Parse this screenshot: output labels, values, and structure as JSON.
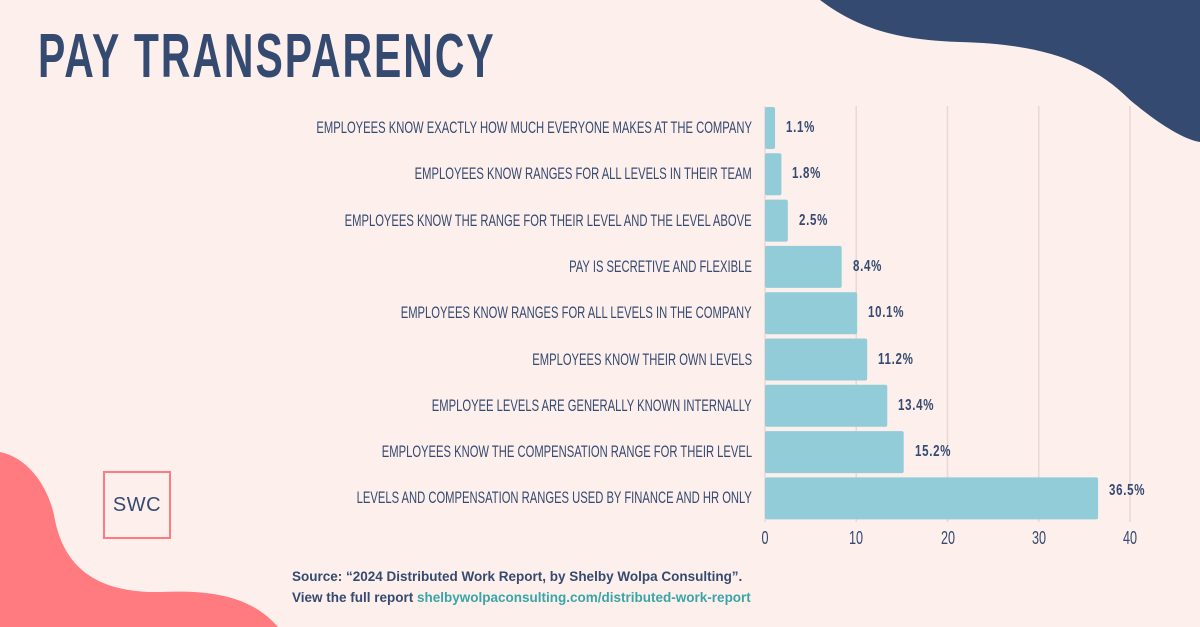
{
  "title": "PAY TRANSPARENCY",
  "logo_text": "SWC",
  "source": {
    "line1": "Source: “2024 Distributed Work Report, by Shelby Wolpa Consulting”.",
    "line2_prefix": "View the full report ",
    "link": "shelbywolpaconsulting.com/distributed-work-report"
  },
  "colors": {
    "background": "#fdefeb",
    "navy": "#354a70",
    "bar": "#92ccd8",
    "coral": "#ff7b80",
    "link": "#3aa5a8"
  },
  "chart_data": {
    "type": "bar",
    "orientation": "horizontal",
    "categories": [
      "EMPLOYEES KNOW EXACTLY HOW MUCH EVERYONE MAKES AT THE COMPANY",
      "EMPLOYEES KNOW RANGES FOR ALL LEVELS IN THEIR TEAM",
      "EMPLOYEES KNOW THE RANGE FOR THEIR LEVEL AND THE LEVEL ABOVE",
      "PAY IS SECRETIVE AND FLEXIBLE",
      "EMPLOYEES KNOW RANGES FOR ALL LEVELS IN THE COMPANY",
      "EMPLOYEES KNOW THEIR OWN LEVELS",
      "EMPLOYEE LEVELS ARE GENERALLY KNOWN INTERNALLY",
      "EMPLOYEES KNOW THE COMPENSATION RANGE FOR THEIR LEVEL",
      "LEVELS AND COMPENSATION RANGES USED BY FINANCE AND HR ONLY"
    ],
    "values": [
      1.1,
      1.8,
      2.5,
      8.4,
      10.1,
      11.2,
      13.4,
      15.2,
      36.5
    ],
    "data_labels": [
      "1.1%",
      "1.8%",
      "2.5%",
      "8.4%",
      "10.1%",
      "11.2%",
      "13.4%",
      "15.2%",
      "36.5%"
    ],
    "xticks": [
      "0",
      "10",
      "20",
      "30",
      "40"
    ],
    "xlim": [
      0,
      40
    ],
    "grid": true,
    "title": "PAY TRANSPARENCY"
  }
}
